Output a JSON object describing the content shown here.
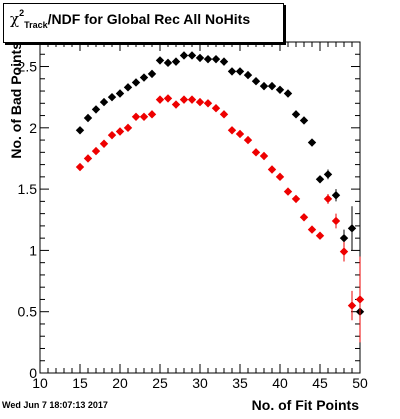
{
  "title": {
    "symbol": "χ",
    "superscript": "2",
    "subscript": "Track",
    "rest": "/NDF for Global Rec All NoHits"
  },
  "timestamp": "Wed Jun  7 18:07:13 2017",
  "colors": {
    "series_black": "#000000",
    "series_red": "#ee0000",
    "frame": "#000000"
  },
  "chart_data": {
    "type": "scatter",
    "title": "χ²_Track/NDF for Global Rec All NoHits",
    "xlabel": "No. of Fit Points",
    "ylabel": "No. of Bad Points",
    "xlim": [
      10,
      50
    ],
    "ylim": [
      0,
      2.7
    ],
    "x_ticks": [
      10,
      15,
      20,
      25,
      30,
      35,
      40,
      45,
      50
    ],
    "x_tick_labels": [
      "10",
      "15",
      "20",
      "25",
      "30",
      "35",
      "40",
      "45",
      "50"
    ],
    "y_ticks": [
      0,
      0.5,
      1,
      1.5,
      2,
      2.5
    ],
    "y_tick_labels": [
      "0",
      "0.5",
      "1",
      "1.5",
      "2",
      "2.5"
    ],
    "grid": false,
    "series": [
      {
        "color": "#000000",
        "x": [
          15,
          16,
          17,
          18,
          19,
          20,
          21,
          22,
          23,
          24,
          25,
          26,
          27,
          28,
          29,
          30,
          31,
          32,
          33,
          34,
          35,
          36,
          37,
          38,
          39,
          40,
          41,
          42,
          43,
          44,
          45,
          46,
          47,
          48,
          49,
          50
        ],
        "y": [
          1.98,
          2.08,
          2.15,
          2.21,
          2.25,
          2.28,
          2.33,
          2.37,
          2.41,
          2.44,
          2.55,
          2.53,
          2.54,
          2.59,
          2.59,
          2.57,
          2.56,
          2.56,
          2.54,
          2.46,
          2.46,
          2.43,
          2.38,
          2.34,
          2.34,
          2.31,
          2.28,
          2.11,
          2.06,
          1.88,
          1.58,
          1.62,
          1.45,
          1.1,
          1.18,
          0.5
        ],
        "err": [
          0.03,
          0.03,
          0.03,
          0.03,
          0.03,
          0.03,
          0.03,
          0.03,
          0.03,
          0.03,
          0.03,
          0.03,
          0.03,
          0.03,
          0.03,
          0.03,
          0.03,
          0.03,
          0.03,
          0.03,
          0.03,
          0.03,
          0.03,
          0.03,
          0.03,
          0.03,
          0.03,
          0.03,
          0.03,
          0.03,
          0.03,
          0.04,
          0.05,
          0.07,
          0.18,
          0.1
        ]
      },
      {
        "color": "#ee0000",
        "x": [
          15,
          16,
          17,
          18,
          19,
          20,
          21,
          22,
          23,
          24,
          25,
          26,
          27,
          28,
          29,
          30,
          31,
          32,
          33,
          34,
          35,
          36,
          37,
          38,
          39,
          40,
          41,
          42,
          43,
          44,
          45,
          46,
          47,
          48,
          49,
          50
        ],
        "y": [
          1.68,
          1.75,
          1.81,
          1.87,
          1.94,
          1.97,
          2.0,
          2.09,
          2.09,
          2.11,
          2.23,
          2.24,
          2.19,
          2.23,
          2.23,
          2.21,
          2.2,
          2.16,
          2.11,
          1.98,
          1.95,
          1.9,
          1.8,
          1.77,
          1.66,
          1.6,
          1.48,
          1.42,
          1.27,
          1.17,
          1.12,
          1.42,
          1.24,
          0.99,
          0.55,
          0.6
        ],
        "err": [
          0.03,
          0.03,
          0.03,
          0.03,
          0.03,
          0.03,
          0.03,
          0.03,
          0.03,
          0.03,
          0.03,
          0.03,
          0.03,
          0.03,
          0.03,
          0.03,
          0.03,
          0.03,
          0.03,
          0.03,
          0.03,
          0.03,
          0.03,
          0.03,
          0.03,
          0.03,
          0.03,
          0.03,
          0.03,
          0.03,
          0.03,
          0.04,
          0.06,
          0.08,
          0.12,
          0.35
        ]
      }
    ]
  }
}
